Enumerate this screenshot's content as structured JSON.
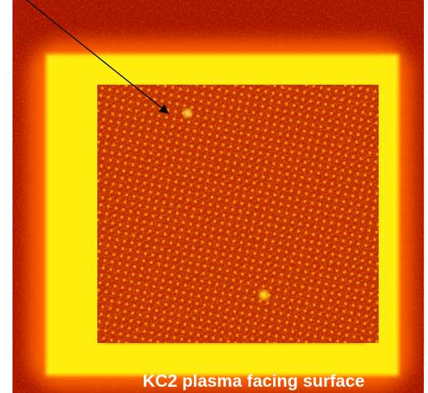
{
  "caption": "KC2 plasma facing surface"
}
